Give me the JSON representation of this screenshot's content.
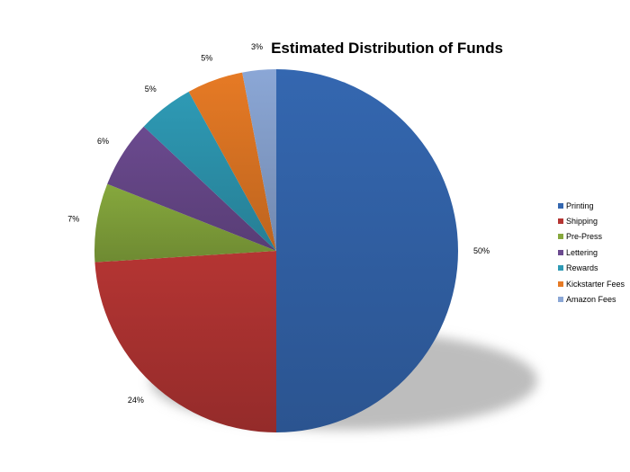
{
  "chart_data": {
    "type": "pie",
    "title": "Estimated Distribution of Funds",
    "categories": [
      "Printing",
      "Shipping",
      "Pre-Press",
      "Lettering",
      "Rewards",
      "Kickstarter Fees",
      "Amazon Fees"
    ],
    "values": [
      50,
      24,
      7,
      6,
      5,
      5,
      3
    ],
    "data_labels": [
      "50%",
      "24%",
      "7%",
      "6%",
      "5%",
      "5%",
      "3%"
    ],
    "colors": [
      "#3467B0",
      "#B53533",
      "#86A83D",
      "#6B4A8F",
      "#2E9AB5",
      "#E67A25",
      "#8BA7D6"
    ],
    "legend_position": "right",
    "grid": false
  }
}
